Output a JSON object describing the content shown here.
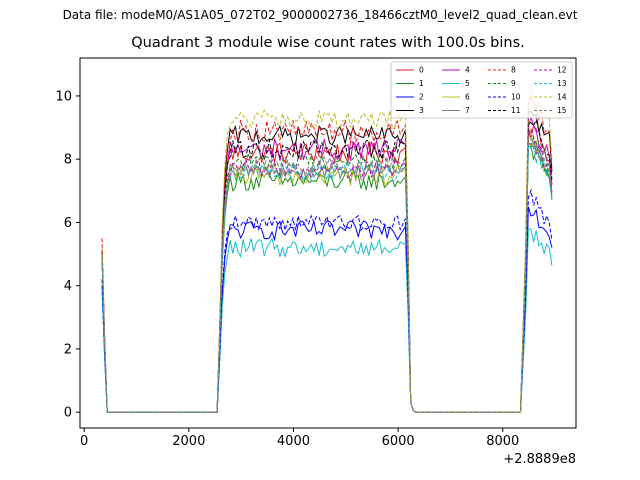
{
  "suptitle": "Data file: modeM0/AS1A05_072T02_9000002736_18466cztM0_level2_quad_clean.evt",
  "chart_data": {
    "type": "line",
    "title": "Quadrant 3 module wise count rates with 100.0s bins.",
    "xlabel": "",
    "ylabel": "",
    "x_offset_label": "+2.8889e8",
    "xlim": [
      -80,
      9400
    ],
    "ylim": [
      -0.5,
      11.2
    ],
    "xticks": [
      0,
      2000,
      4000,
      6000,
      8000
    ],
    "xtick_labels": [
      "0",
      "2000",
      "4000",
      "6000",
      "8000"
    ],
    "yticks": [
      0,
      2,
      4,
      6,
      8,
      10
    ],
    "ytick_labels": [
      "0",
      "2",
      "4",
      "6",
      "8",
      "10"
    ],
    "legend_position": "top-right",
    "segments": [
      {
        "x_start": 340,
        "x_end": 2540,
        "plateau_start": 440
      },
      {
        "x_start": 2540,
        "x_end": 6240,
        "plateau_start": 2840
      },
      {
        "x_start": 6240,
        "x_end": 8340,
        "plateau_start": 6340
      },
      {
        "x_start": 8340,
        "x_end": 8940,
        "plateau_start": 8640
      }
    ],
    "series": [
      {
        "name": "0",
        "color": "#e41a1c",
        "dash": false,
        "start": 5.2,
        "active": 8.2,
        "jitter": 0.35,
        "final": 9.0
      },
      {
        "name": "1",
        "color": "#1b8c1b",
        "dash": false,
        "start": 4.9,
        "active": 7.3,
        "jitter": 0.3,
        "final": 8.4
      },
      {
        "name": "2",
        "color": "#0000ff",
        "dash": false,
        "start": 4.0,
        "active": 5.75,
        "jitter": 0.3,
        "final": 6.5
      },
      {
        "name": "3",
        "color": "#000000",
        "dash": false,
        "start": 5.1,
        "active": 8.75,
        "jitter": 0.3,
        "final": 9.5
      },
      {
        "name": "4",
        "color": "#c000c0",
        "dash": false,
        "start": 5.0,
        "active": 8.3,
        "jitter": 0.35,
        "final": 9.0
      },
      {
        "name": "5",
        "color": "#17becf",
        "dash": false,
        "start": 3.9,
        "active": 5.2,
        "jitter": 0.3,
        "final": 5.8
      },
      {
        "name": "6",
        "color": "#bcbd22",
        "dash": false,
        "start": 5.0,
        "active": 7.5,
        "jitter": 0.35,
        "final": 8.6
      },
      {
        "name": "7",
        "color": "#7f7f7f",
        "dash": false,
        "start": 5.0,
        "active": 7.6,
        "jitter": 0.25,
        "final": 8.5
      },
      {
        "name": "8",
        "color": "#e41a1c",
        "dash": true,
        "start": 5.5,
        "active": 8.9,
        "jitter": 0.35,
        "final": 9.7
      },
      {
        "name": "9",
        "color": "#1b8c1b",
        "dash": true,
        "start": 5.0,
        "active": 7.9,
        "jitter": 0.3,
        "final": 8.5
      },
      {
        "name": "10",
        "color": "#0000ff",
        "dash": true,
        "start": 4.2,
        "active": 6.0,
        "jitter": 0.25,
        "final": 6.8
      },
      {
        "name": "11",
        "color": "#000000",
        "dash": true,
        "start": 5.0,
        "active": 8.3,
        "jitter": 0.3,
        "final": 9.2
      },
      {
        "name": "12",
        "color": "#c000c0",
        "dash": true,
        "start": 5.0,
        "active": 7.7,
        "jitter": 0.3,
        "final": 8.7
      },
      {
        "name": "13",
        "color": "#17becf",
        "dash": true,
        "start": 4.9,
        "active": 7.6,
        "jitter": 0.3,
        "final": 8.4
      },
      {
        "name": "14",
        "color": "#bcbd22",
        "dash": true,
        "start": 5.2,
        "active": 9.25,
        "jitter": 0.3,
        "final": 10.0
      },
      {
        "name": "15",
        "color": "#7f7f7f",
        "dash": true,
        "start": 5.0,
        "active": 7.8,
        "jitter": 0.3,
        "final": 8.7
      }
    ]
  }
}
